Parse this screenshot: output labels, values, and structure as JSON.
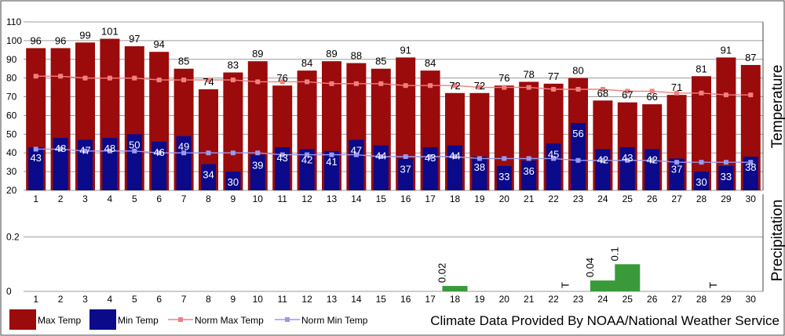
{
  "chart_data": [
    {
      "type": "bar",
      "ylabel": "Temperature",
      "ylim": [
        20,
        110
      ],
      "yticks": [
        20,
        30,
        40,
        50,
        60,
        70,
        80,
        90,
        100,
        110
      ],
      "categories": [
        "1",
        "2",
        "3",
        "4",
        "5",
        "6",
        "7",
        "8",
        "9",
        "10",
        "11",
        "12",
        "13",
        "14",
        "15",
        "16",
        "17",
        "18",
        "19",
        "20",
        "21",
        "22",
        "23",
        "24",
        "25",
        "26",
        "27",
        "28",
        "29",
        "30"
      ],
      "grid": true,
      "series": [
        {
          "name": "Max Temp",
          "kind": "bar",
          "color": "#9b0b0b",
          "values": [
            96,
            96,
            99,
            101,
            97,
            94,
            85,
            74,
            83,
            89,
            76,
            84,
            89,
            88,
            85,
            91,
            84,
            72,
            72,
            76,
            78,
            77,
            80,
            68,
            67,
            66,
            71,
            81,
            91,
            87
          ]
        },
        {
          "name": "Min Temp",
          "kind": "bar",
          "color": "#0a0a8a",
          "values": [
            43,
            48,
            47,
            48,
            50,
            46,
            49,
            34,
            30,
            39,
            43,
            42,
            41,
            47,
            44,
            37,
            43,
            44,
            38,
            33,
            36,
            45,
            56,
            42,
            43,
            42,
            37,
            30,
            33,
            38
          ]
        },
        {
          "name": "Norm Max Temp",
          "kind": "line",
          "color": "#f08080",
          "values": [
            81,
            81,
            80,
            80,
            80,
            79,
            79,
            79,
            79,
            78,
            78,
            78,
            77,
            77,
            77,
            76,
            76,
            76,
            75,
            75,
            75,
            74,
            74,
            74,
            73,
            73,
            72,
            72,
            71,
            71
          ]
        },
        {
          "name": "Norm Min Temp",
          "kind": "line",
          "color": "#9999ee",
          "values": [
            42,
            42,
            41,
            41,
            41,
            40,
            40,
            40,
            40,
            40,
            39,
            39,
            39,
            39,
            38,
            38,
            38,
            38,
            37,
            37,
            37,
            37,
            36,
            36,
            36,
            36,
            35,
            35,
            35,
            35
          ]
        }
      ]
    },
    {
      "type": "bar",
      "ylabel": "Precipitation",
      "ylim": [
        0,
        0.3
      ],
      "yticks": [
        {
          "v": 0,
          "label": "0"
        },
        {
          "v": 0.2,
          "label": "0.2"
        }
      ],
      "categories": [
        "1",
        "2",
        "3",
        "4",
        "5",
        "6",
        "7",
        "8",
        "9",
        "10",
        "11",
        "12",
        "13",
        "14",
        "15",
        "16",
        "17",
        "18",
        "19",
        "20",
        "21",
        "22",
        "23",
        "24",
        "25",
        "26",
        "27",
        "28",
        "29",
        "30"
      ],
      "color": "#3a9a3a",
      "values": [
        0,
        0,
        0,
        0,
        0,
        0,
        0,
        0,
        0,
        0,
        0,
        0,
        0,
        0,
        0,
        0,
        0,
        0.02,
        0,
        0,
        0,
        0,
        0,
        0.04,
        0.1,
        0,
        0,
        0,
        0,
        0
      ],
      "labels": [
        "",
        "",
        "",
        "",
        "",
        "",
        "",
        "",
        "",
        "",
        "",
        "",
        "",
        "",
        "",
        "",
        "",
        "0.02",
        "",
        "",
        "",
        "",
        "T",
        "0.04",
        "0.1",
        "",
        "",
        "",
        "T",
        ""
      ]
    }
  ],
  "legend": [
    {
      "label": "Max Temp",
      "color": "#9b0b0b",
      "kind": "box"
    },
    {
      "label": "Min Temp",
      "color": "#0a0a8a",
      "kind": "box"
    },
    {
      "label": "Norm Max Temp",
      "color": "#f08080",
      "kind": "line"
    },
    {
      "label": "Norm Min Temp",
      "color": "#9999ee",
      "kind": "line"
    }
  ],
  "credit": "Climate Data Provided By NOAA/National Weather Service"
}
